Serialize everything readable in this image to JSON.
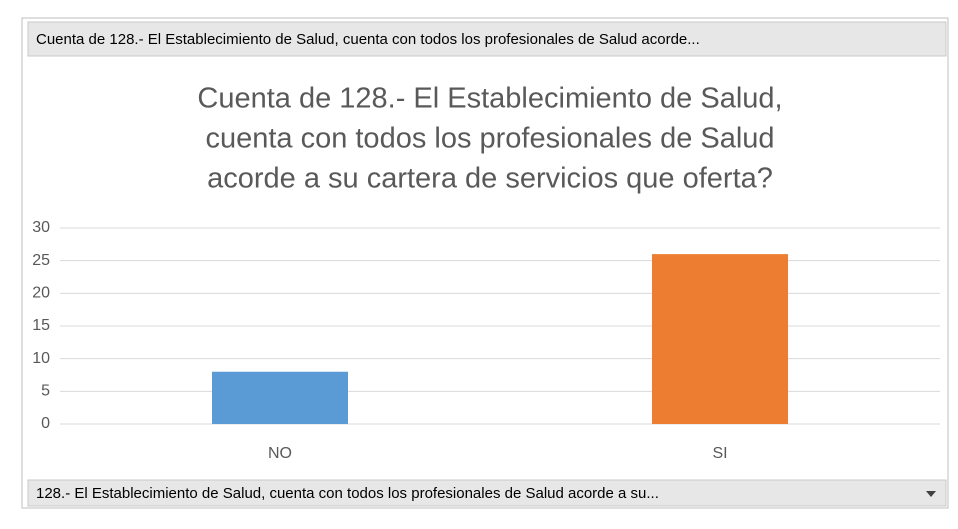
{
  "chart_data": {
    "type": "bar",
    "header": "Cuenta de 128.- El Establecimiento de Salud, cuenta con todos los profesionales de Salud acorde...",
    "title": [
      "Cuenta de 128.- El Establecimiento de Salud,",
      "cuenta con todos los profesionales de Salud",
      "acorde a su cartera de servicios que oferta?"
    ],
    "categories": [
      "NO",
      "SI"
    ],
    "values": [
      8,
      26
    ],
    "colors": [
      "#5b9bd5",
      "#ed7d31"
    ],
    "ylim": [
      0,
      30
    ],
    "yticks": [
      0,
      5,
      10,
      15,
      20,
      25,
      30
    ],
    "grid": true,
    "axis_field": "128.- El Establecimiento de Salud, cuenta con todos los profesionales de Salud acorde a su..."
  }
}
